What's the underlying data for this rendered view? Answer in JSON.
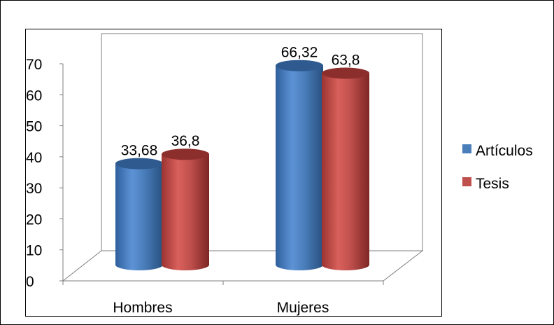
{
  "chart_data": {
    "type": "bar",
    "categories": [
      "Hombres",
      "Mujeres"
    ],
    "series": [
      {
        "name": "Artículos",
        "values": [
          33.68,
          66.32
        ],
        "labels": [
          "33,68",
          "66,32"
        ],
        "color": "#4a7ebb",
        "dark": "#2e5a8f"
      },
      {
        "name": "Tesis",
        "values": [
          36.8,
          63.8
        ],
        "labels": [
          "36,8",
          "63,8"
        ],
        "color": "#c0504d",
        "dark": "#8c2e2b"
      }
    ],
    "yticks": [
      "0",
      "10",
      "20",
      "30",
      "40",
      "50",
      "60",
      "70"
    ],
    "ylim": [
      0,
      70
    ],
    "legend_position": "right",
    "style": "3d-cylinder"
  }
}
